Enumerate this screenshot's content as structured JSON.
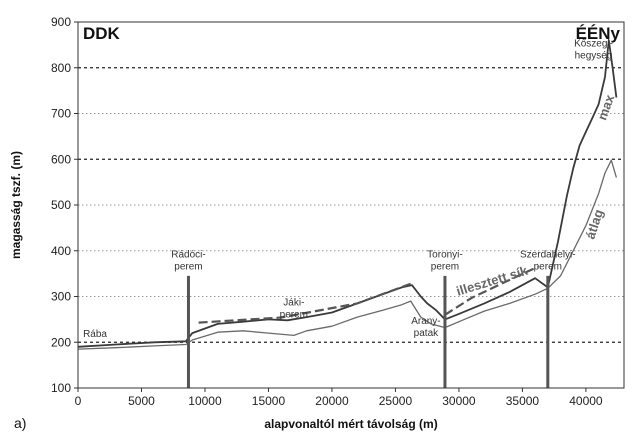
{
  "chart_data": {
    "type": "line",
    "title": "",
    "xlabel": "alapvonaltól mért távolság (m)",
    "ylabel": "magasság tszf. (m)",
    "xlim": [
      0,
      43000
    ],
    "ylim": [
      100,
      900
    ],
    "xticks": [
      0,
      5000,
      10000,
      15000,
      20000,
      25000,
      30000,
      35000,
      40000
    ],
    "xtick_labels": [
      "0",
      "5000",
      "10000",
      "15000",
      "20000",
      "25000",
      "30000",
      "35000",
      "40000"
    ],
    "yticks": [
      100,
      200,
      300,
      400,
      500,
      600,
      700,
      800,
      900
    ],
    "ytick_labels": [
      "100",
      "200",
      "300",
      "400",
      "500",
      "600",
      "700",
      "800",
      "900"
    ],
    "dashed_gridlines_y": [
      200,
      600,
      800
    ],
    "dotted_gridlines_y": [
      300,
      400,
      500,
      700
    ],
    "corner_labels": {
      "left": "DDK",
      "right": "ÉÉNy"
    },
    "panel_label": "a)",
    "vertical_markers": [
      {
        "x": 8700,
        "label_lines": [
          "Rádóci-",
          "perem"
        ]
      },
      {
        "x": 28900,
        "label_lines": [
          "Toronyi-",
          "perem"
        ]
      },
      {
        "x": 37000,
        "label_lines": [
          "Szerdahelyi-",
          "perem"
        ]
      }
    ],
    "annotations": [
      {
        "text_lines": [
          "Rába"
        ],
        "x": 400,
        "y": 212
      },
      {
        "text_lines": [
          "Jáki-",
          "perem"
        ],
        "x": 17000,
        "y": 280
      },
      {
        "text_lines": [
          "Arany-",
          "patak"
        ],
        "x": 27400,
        "y": 240
      },
      {
        "text_lines": [
          "Kőszegi-",
          "hegység"
        ],
        "x": 40600,
        "y": 846
      }
    ],
    "series": [
      {
        "name": "max",
        "style": "solid-dark",
        "x": [
          0,
          3000,
          6000,
          8500,
          9000,
          11000,
          13000,
          15000,
          16500,
          18000,
          20000,
          22000,
          24000,
          25500,
          26300,
          27000,
          27500,
          28200,
          28900,
          30000,
          32000,
          34000,
          36000,
          37000,
          37800,
          38500,
          39000,
          39500,
          40000,
          40500,
          41000,
          41500,
          41800,
          42100,
          42400
        ],
        "values": [
          190,
          195,
          200,
          202,
          220,
          240,
          245,
          250,
          248,
          255,
          265,
          285,
          305,
          320,
          325,
          300,
          285,
          270,
          250,
          262,
          285,
          310,
          340,
          320,
          420,
          520,
          580,
          630,
          660,
          690,
          720,
          780,
          860,
          800,
          735
        ]
      },
      {
        "name": "átlag",
        "style": "solid-light",
        "x": [
          0,
          3000,
          6000,
          8500,
          9000,
          11000,
          13000,
          15000,
          17000,
          18000,
          20000,
          22000,
          24000,
          25500,
          26200,
          27000,
          27800,
          28900,
          30000,
          32000,
          34000,
          36000,
          37000,
          38000,
          39000,
          40000,
          41000,
          41500,
          42000,
          42400
        ],
        "values": [
          185,
          188,
          192,
          195,
          205,
          222,
          225,
          220,
          215,
          225,
          235,
          255,
          270,
          282,
          290,
          255,
          240,
          232,
          245,
          268,
          285,
          305,
          318,
          345,
          400,
          455,
          525,
          570,
          598,
          560
        ]
      },
      {
        "name": "illesztett sík",
        "style": "dashed",
        "x": [
          9500,
          16000,
          22000,
          26400
        ],
        "values": [
          243,
          254,
          285,
          330
        ]
      },
      {
        "name": "illesztett sík",
        "style": "dashed",
        "x": [
          28900,
          31000,
          33500,
          36200
        ],
        "values": [
          260,
          297,
          330,
          365
        ]
      }
    ],
    "series_labels": [
      {
        "text": "max",
        "x": 41900,
        "y": 710,
        "rotate": -70
      },
      {
        "text": "átlag",
        "x": 41000,
        "y": 455,
        "rotate": -72
      },
      {
        "text": "illesztett sík",
        "x": 32700,
        "y": 325,
        "rotate": -17
      }
    ]
  }
}
